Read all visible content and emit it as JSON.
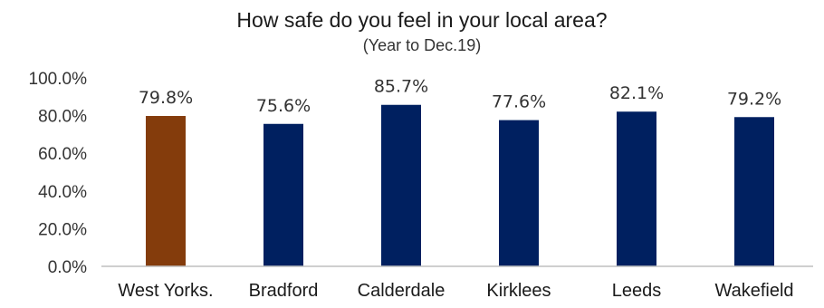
{
  "chart_data": {
    "type": "bar",
    "title": "How safe do you feel in your local area?",
    "subtitle": "(Year to Dec.19)",
    "categories": [
      "West Yorks.",
      "Bradford",
      "Calderdale",
      "Kirklees",
      "Leeds",
      "Wakefield"
    ],
    "values": [
      79.8,
      75.6,
      85.7,
      77.6,
      82.1,
      79.2
    ],
    "data_labels": [
      "79.8%",
      "75.6%",
      "85.7%",
      "77.6%",
      "82.1%",
      "79.2%"
    ],
    "y_ticks": [
      "0.0%",
      "20.0%",
      "40.0%",
      "60.0%",
      "80.0%",
      "100.0%"
    ],
    "ylim": [
      0,
      100
    ],
    "xlabel": "",
    "ylabel": "",
    "grid": false,
    "legend": "none",
    "colors": {
      "highlight": "#843c0c",
      "bar": "#002060",
      "axis": "#bfbfbf"
    },
    "bar_colors": [
      "highlight",
      "bar",
      "bar",
      "bar",
      "bar",
      "bar"
    ]
  }
}
